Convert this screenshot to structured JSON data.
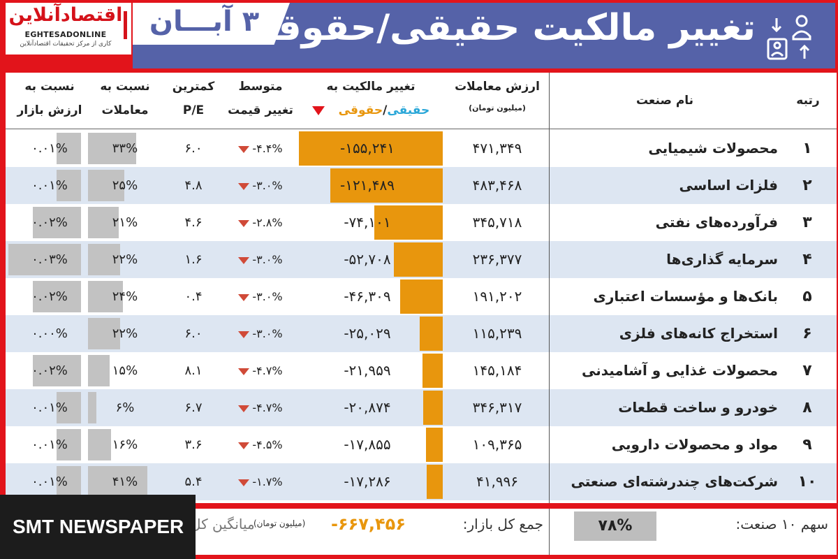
{
  "logo": {
    "name_fa": "اقتصادآنلاین",
    "name_en": "EGHTESADONLINE",
    "tagline": "کاری از مرکز تحقیقات اقتصادآنلاین"
  },
  "header": {
    "date": "۳ آبـــان",
    "title": "تغییر مالکیت حقیقی/حقوقی"
  },
  "columns": {
    "rank": "رتبه",
    "industry": "نام صنعت",
    "value_l1": "ارزش معاملات",
    "value_l2": "(میلیون تومان)",
    "ownership_l1": "تغییر مالکیت به",
    "ownership_l2a": "حقیقی",
    "ownership_sep": "/",
    "ownership_l2b": "حقوقی",
    "price_l1": "متوسط",
    "price_l2": "تغییر قیمت",
    "pe_l1": "کمترین",
    "pe_l2": "P/E",
    "share_l1": "نسبت به",
    "share_l2": "معاملات",
    "market_l1": "نسبت به",
    "market_l2": "ارزش بازار"
  },
  "rows": [
    {
      "rank": "۱",
      "industry": "محصولات شیمیایی",
      "value": "۴۷۱,۳۴۹",
      "ownership": "-۱۵۵,۲۴۱",
      "ownership_val": -155241,
      "price": "-۴.۴%",
      "pe": "۶.۰",
      "share": "۳۳%",
      "share_val": 33,
      "market": "۰.۰۱%",
      "market_val": 0.01
    },
    {
      "rank": "۲",
      "industry": "فلزات اساسی",
      "value": "۴۸۳,۴۶۸",
      "ownership": "-۱۲۱,۴۸۹",
      "ownership_val": -121489,
      "price": "-۳.۰%",
      "pe": "۴.۸",
      "share": "۲۵%",
      "share_val": 25,
      "market": "۰.۰۱%",
      "market_val": 0.01
    },
    {
      "rank": "۳",
      "industry": "فرآورده‌های نفتی",
      "value": "۳۴۵,۷۱۸",
      "ownership": "-۷۴,۱۰۱",
      "ownership_val": -74101,
      "price": "-۲.۸%",
      "pe": "۴.۶",
      "share": "۲۱%",
      "share_val": 21,
      "market": "۰.۰۲%",
      "market_val": 0.02
    },
    {
      "rank": "۴",
      "industry": "سرمایه گذاری‌ها",
      "value": "۲۳۶,۳۷۷",
      "ownership": "-۵۲,۷۰۸",
      "ownership_val": -52708,
      "price": "-۳.۰%",
      "pe": "۱.۶",
      "share": "۲۲%",
      "share_val": 22,
      "market": "۰.۰۳%",
      "market_val": 0.03
    },
    {
      "rank": "۵",
      "industry": "بانک‌ها و مؤسسات اعتباری",
      "value": "۱۹۱,۲۰۲",
      "ownership": "-۴۶,۳۰۹",
      "ownership_val": -46309,
      "price": "-۳.۰%",
      "pe": "۰.۴",
      "share": "۲۴%",
      "share_val": 24,
      "market": "۰.۰۲%",
      "market_val": 0.02
    },
    {
      "rank": "۶",
      "industry": "استخراج کانه‌های فلزی",
      "value": "۱۱۵,۲۳۹",
      "ownership": "-۲۵,۰۲۹",
      "ownership_val": -25029,
      "price": "-۳.۰%",
      "pe": "۶.۰",
      "share": "۲۲%",
      "share_val": 22,
      "market": "۰.۰۰%",
      "market_val": 0.0
    },
    {
      "rank": "۷",
      "industry": "محصولات غذایی و آشامیدنی",
      "value": "۱۴۵,۱۸۴",
      "ownership": "-۲۱,۹۵۹",
      "ownership_val": -21959,
      "price": "-۴.۷%",
      "pe": "۸.۱",
      "share": "۱۵%",
      "share_val": 15,
      "market": "۰.۰۲%",
      "market_val": 0.02
    },
    {
      "rank": "۸",
      "industry": "خودرو و ساخت قطعات",
      "value": "۳۴۶,۳۱۷",
      "ownership": "-۲۰,۸۷۴",
      "ownership_val": -20874,
      "price": "-۴.۷%",
      "pe": "۶.۷",
      "share": "۶%",
      "share_val": 6,
      "market": "۰.۰۱%",
      "market_val": 0.01
    },
    {
      "rank": "۹",
      "industry": "مواد و محصولات دارویی",
      "value": "۱۰۹,۳۶۵",
      "ownership": "-۱۷,۸۵۵",
      "ownership_val": -17855,
      "price": "-۴.۵%",
      "pe": "۳.۶",
      "share": "۱۶%",
      "share_val": 16,
      "market": "۰.۰۱%",
      "market_val": 0.01
    },
    {
      "rank": "۱۰",
      "industry": "شرکت‌های چندرشته‌ای صنعتی",
      "value": "۴۱,۹۹۶",
      "ownership": "-۱۷,۲۸۶",
      "ownership_val": -17286,
      "price": "-۱.۷%",
      "pe": "۵.۴",
      "share": "۴۱%",
      "share_val": 41,
      "market": "۰.۰۱%",
      "market_val": 0.01
    }
  ],
  "footer": {
    "top10_label": "سهم ۱۰ صنعت:",
    "top10_value": "۷۸%",
    "market_total_label": "جمع کل بازار:",
    "market_total_value": "-۶۶۷,۴۵۶",
    "unit": "(میلیون تومان)",
    "average_label": "میانگین کل"
  },
  "badge": {
    "text": "SMT NEWSPAPER"
  },
  "colors": {
    "brand_red": "#e2141b",
    "header_blue": "#5562a8",
    "ownership_bar": "#e8960d",
    "ratio_bar": "#c2c2c2",
    "alt_row": "#dde6f2",
    "real_color": "#2aa7d8",
    "legal_color": "#e8960d",
    "down_arrow": "#d04a38"
  }
}
